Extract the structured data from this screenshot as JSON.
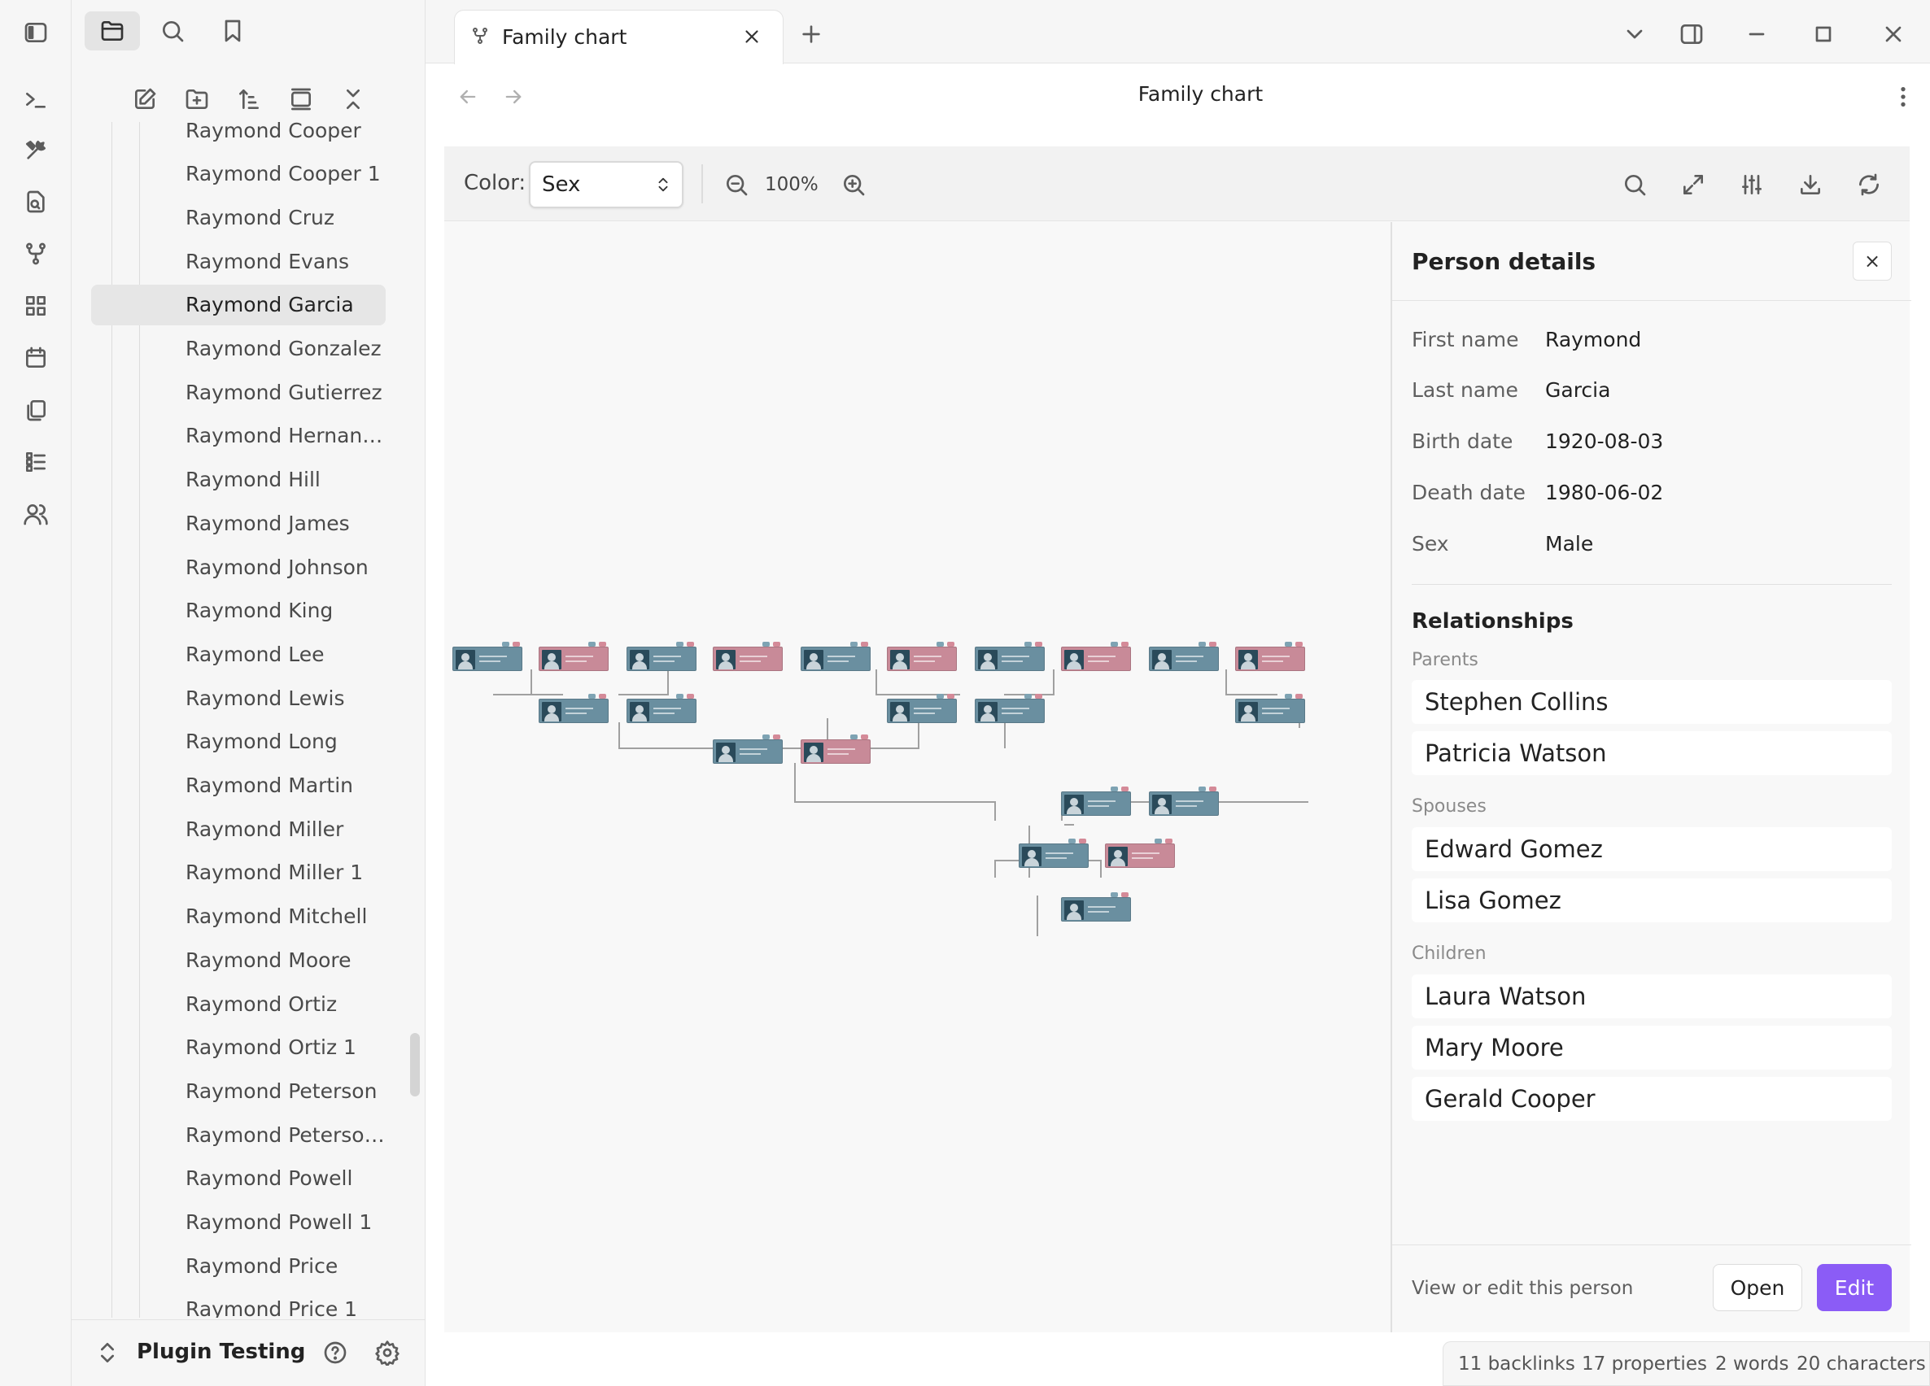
{
  "ribbon": {
    "icons": [
      "sidebar-toggle-icon",
      "terminal-icon",
      "tools-icon",
      "file-search-icon",
      "git-fork-icon",
      "grid-icon",
      "calendar-icon",
      "copy-icon",
      "list-icon",
      "users-icon"
    ]
  },
  "sidebar": {
    "items": [
      "Raymond Cooper",
      "Raymond Cooper 1",
      "Raymond Cruz",
      "Raymond Evans",
      "Raymond Garcia",
      "Raymond Gonzalez",
      "Raymond Gutierrez",
      "Raymond Hernan…",
      "Raymond Hill",
      "Raymond James",
      "Raymond Johnson",
      "Raymond King",
      "Raymond Lee",
      "Raymond Lewis",
      "Raymond Long",
      "Raymond Martin",
      "Raymond Miller",
      "Raymond Miller 1",
      "Raymond Mitchell",
      "Raymond Moore",
      "Raymond Ortiz",
      "Raymond Ortiz 1",
      "Raymond Peterson",
      "Raymond Peterso…",
      "Raymond Powell",
      "Raymond Powell 1",
      "Raymond Price",
      "Raymond Price 1"
    ],
    "active_index": 4,
    "vault_name": "Plugin Testing"
  },
  "tab": {
    "title": "Family chart"
  },
  "nav": {
    "title": "Family chart"
  },
  "toolbar": {
    "color_label": "Color:",
    "color_value": "Sex",
    "zoom": "100%"
  },
  "details": {
    "heading": "Person details",
    "close_label": "×",
    "fields": {
      "first_name_label": "First name",
      "first_name": "Raymond",
      "last_name_label": "Last name",
      "last_name": "Garcia",
      "birth_label": "Birth date",
      "birth": "1920-08-03",
      "death_label": "Death date",
      "death": "1980-06-02",
      "sex_label": "Sex",
      "sex": "Male"
    },
    "relationships_heading": "Relationships",
    "parents_label": "Parents",
    "parents": [
      "Stephen Collins",
      "Patricia Watson"
    ],
    "spouses_label": "Spouses",
    "spouses": [
      "Edward Gomez",
      "Lisa Gomez"
    ],
    "children_label": "Children",
    "children": [
      "Laura Watson",
      "Mary Moore",
      "Gerald Cooper"
    ],
    "footer_text": "View or edit this person",
    "open_label": "Open",
    "edit_label": "Edit"
  },
  "status": {
    "backlinks": "11 backlinks",
    "properties": "17 properties",
    "words": "2 words",
    "characters": "20 characters"
  },
  "colors": {
    "accent": "#8b5cf6",
    "male_node": "#6a8fa0",
    "female_node": "#c88a98"
  }
}
